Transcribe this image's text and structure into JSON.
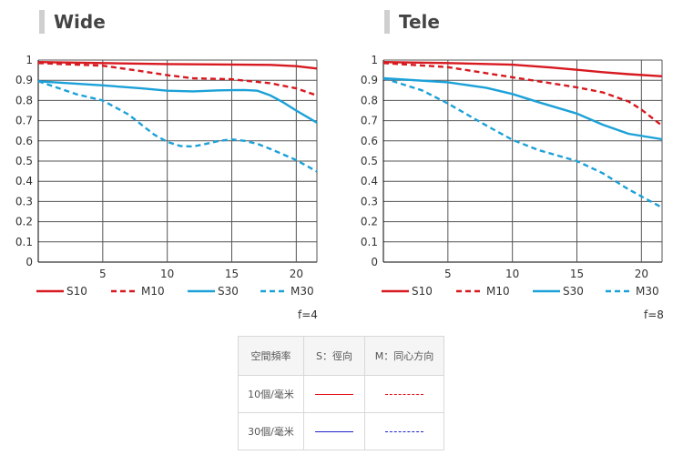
{
  "colors": {
    "red": "#d71920",
    "blue": "#1ba1d8",
    "table_red": "#e8101a",
    "table_blue": "#1e22c8"
  },
  "chart_data": [
    {
      "type": "line",
      "title": "Wide",
      "fstop": "f=4",
      "xlim": [
        0,
        21.6
      ],
      "ylim": [
        0,
        1
      ],
      "x_ticks": [
        5,
        10,
        15,
        20
      ],
      "y_ticks": [
        "0",
        "0.1",
        "0.2",
        "0.3",
        "0.4",
        "0.5",
        "0.6",
        "0.7",
        "0.8",
        "0.9",
        "1"
      ],
      "grid": true,
      "legend": "bottom",
      "series": [
        {
          "name": "S10",
          "style": "solid",
          "color": "red",
          "points": [
            [
              0,
              0.99
            ],
            [
              5,
              0.985
            ],
            [
              10,
              0.98
            ],
            [
              15,
              0.978
            ],
            [
              18,
              0.976
            ],
            [
              20,
              0.97
            ],
            [
              21.6,
              0.958
            ]
          ]
        },
        {
          "name": "M10",
          "style": "dashed",
          "color": "red",
          "points": [
            [
              0,
              0.985
            ],
            [
              5,
              0.972
            ],
            [
              8,
              0.945
            ],
            [
              10,
              0.925
            ],
            [
              12,
              0.91
            ],
            [
              15,
              0.905
            ],
            [
              18,
              0.885
            ],
            [
              20,
              0.86
            ],
            [
              21.6,
              0.825
            ]
          ]
        },
        {
          "name": "S30",
          "style": "solid",
          "color": "blue",
          "points": [
            [
              0,
              0.895
            ],
            [
              5,
              0.875
            ],
            [
              8,
              0.86
            ],
            [
              10,
              0.848
            ],
            [
              12,
              0.845
            ],
            [
              14,
              0.85
            ],
            [
              16,
              0.852
            ],
            [
              17,
              0.848
            ],
            [
              18,
              0.825
            ],
            [
              19,
              0.79
            ],
            [
              20,
              0.75
            ],
            [
              21.6,
              0.69
            ]
          ]
        },
        {
          "name": "M30",
          "style": "dashed",
          "color": "blue",
          "points": [
            [
              0,
              0.895
            ],
            [
              3,
              0.83
            ],
            [
              5,
              0.8
            ],
            [
              7,
              0.73
            ],
            [
              9,
              0.63
            ],
            [
              10,
              0.595
            ],
            [
              11,
              0.575
            ],
            [
              12,
              0.572
            ],
            [
              13,
              0.585
            ],
            [
              14,
              0.6
            ],
            [
              15,
              0.607
            ],
            [
              16,
              0.6
            ],
            [
              17,
              0.585
            ],
            [
              18,
              0.56
            ],
            [
              20,
              0.505
            ],
            [
              21.6,
              0.448
            ]
          ]
        }
      ]
    },
    {
      "type": "line",
      "title": "Tele",
      "fstop": "f=8",
      "xlim": [
        0,
        21.6
      ],
      "ylim": [
        0,
        1
      ],
      "x_ticks": [
        5,
        10,
        15,
        20
      ],
      "y_ticks": [
        "0",
        "0.1",
        "0.2",
        "0.3",
        "0.4",
        "0.5",
        "0.6",
        "0.7",
        "0.8",
        "0.9",
        "1"
      ],
      "grid": true,
      "legend": "bottom",
      "series": [
        {
          "name": "S10",
          "style": "solid",
          "color": "red",
          "points": [
            [
              0,
              0.99
            ],
            [
              5,
              0.985
            ],
            [
              10,
              0.977
            ],
            [
              13,
              0.963
            ],
            [
              15,
              0.952
            ],
            [
              17,
              0.94
            ],
            [
              19,
              0.93
            ],
            [
              21.6,
              0.92
            ]
          ]
        },
        {
          "name": "M10",
          "style": "dashed",
          "color": "red",
          "points": [
            [
              0,
              0.985
            ],
            [
              5,
              0.965
            ],
            [
              10,
              0.915
            ],
            [
              13,
              0.885
            ],
            [
              15,
              0.865
            ],
            [
              17,
              0.84
            ],
            [
              19,
              0.795
            ],
            [
              20,
              0.755
            ],
            [
              21.6,
              0.675
            ]
          ]
        },
        {
          "name": "S30",
          "style": "solid",
          "color": "blue",
          "points": [
            [
              0,
              0.91
            ],
            [
              5,
              0.89
            ],
            [
              8,
              0.862
            ],
            [
              10,
              0.832
            ],
            [
              12,
              0.792
            ],
            [
              15,
              0.735
            ],
            [
              17,
              0.68
            ],
            [
              19,
              0.635
            ],
            [
              21.6,
              0.608
            ]
          ]
        },
        {
          "name": "M30",
          "style": "dashed",
          "color": "blue",
          "points": [
            [
              0,
              0.91
            ],
            [
              3,
              0.85
            ],
            [
              5,
              0.785
            ],
            [
              8,
              0.675
            ],
            [
              10,
              0.605
            ],
            [
              12,
              0.555
            ],
            [
              15,
              0.5
            ],
            [
              17,
              0.44
            ],
            [
              19,
              0.36
            ],
            [
              21.6,
              0.27
            ]
          ]
        }
      ]
    }
  ],
  "legend_table": {
    "headers": [
      "空間頻率",
      "S：徑向",
      "M：同心方向"
    ],
    "rows": [
      {
        "label": "10個/毫米",
        "s": "solid",
        "m": "dashed",
        "color": "table_red"
      },
      {
        "label": "30個/毫米",
        "s": "solid",
        "m": "dashed",
        "color": "table_blue"
      }
    ]
  }
}
